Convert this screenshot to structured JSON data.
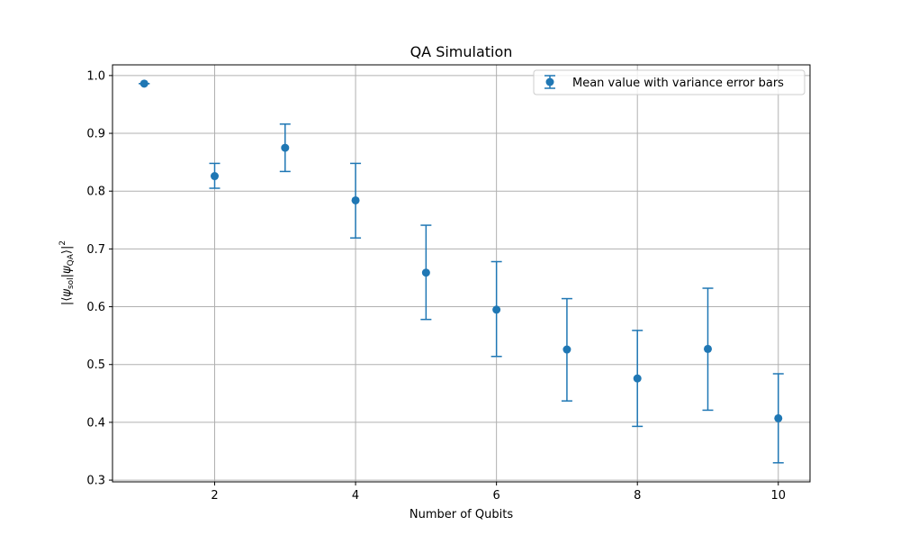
{
  "chart_data": {
    "type": "scatter",
    "title": "QA Simulation",
    "xlabel": "Number of Qubits",
    "ylabel": "|⟨ψsol|ψQA⟩|²",
    "xlim": [
      0.55,
      10.45
    ],
    "ylim": [
      0.297,
      1.0185
    ],
    "xticks": [
      2,
      4,
      6,
      8,
      10
    ],
    "yticks": [
      0.3,
      0.4,
      0.5,
      0.6,
      0.7,
      0.8,
      0.9,
      1.0
    ],
    "xtick_labels": [
      "2",
      "4",
      "6",
      "8",
      "10"
    ],
    "ytick_labels": [
      "0.3",
      "0.4",
      "0.5",
      "0.6",
      "0.7",
      "0.8",
      "0.9",
      "1.0"
    ],
    "grid": true,
    "legend_placement": "upper-right",
    "color": "#1f77b4",
    "series": [
      {
        "name": "Mean value with variance error bars",
        "x": [
          1,
          2,
          3,
          4,
          5,
          6,
          7,
          8,
          9,
          10
        ],
        "y": [
          0.986,
          0.826,
          0.875,
          0.784,
          0.659,
          0.595,
          0.526,
          0.476,
          0.527,
          0.407
        ],
        "yerr_lower": [
          0.986,
          0.805,
          0.834,
          0.719,
          0.578,
          0.514,
          0.437,
          0.393,
          0.421,
          0.33
        ],
        "yerr_upper": [
          0.986,
          0.848,
          0.916,
          0.848,
          0.741,
          0.678,
          0.614,
          0.559,
          0.632,
          0.484
        ]
      }
    ]
  }
}
